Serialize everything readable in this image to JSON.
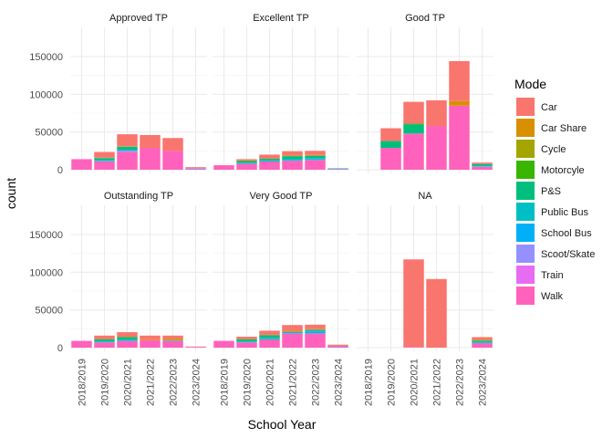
{
  "chart_data": {
    "type": "bar",
    "stacked": true,
    "facet_layout": "2x3 grid",
    "xlabel": "School Year",
    "ylabel": "count",
    "ylim": [
      0,
      150000
    ],
    "y_ticks": [
      0,
      50000,
      100000,
      150000
    ],
    "y_tick_labels": [
      "0",
      "50000",
      "100000",
      "150000"
    ],
    "categories": [
      "2018/2019",
      "2019/2020",
      "2020/2021",
      "2021/2022",
      "2022/2023",
      "2023/2024"
    ],
    "grid": true,
    "legend": {
      "title": "Mode",
      "position": "right",
      "entries": [
        {
          "name": "Car",
          "color": "#F8766D"
        },
        {
          "name": "Car Share",
          "color": "#D89000"
        },
        {
          "name": "Cycle",
          "color": "#A3A500"
        },
        {
          "name": "Motorcyle",
          "color": "#39B600"
        },
        {
          "name": "P&S",
          "color": "#00BF7D"
        },
        {
          "name": "Public Bus",
          "color": "#00BFC4"
        },
        {
          "name": "School Bus",
          "color": "#00B0F6"
        },
        {
          "name": "Scoot/Skate",
          "color": "#9590FF"
        },
        {
          "name": "Train",
          "color": "#E76BF3"
        },
        {
          "name": "Walk",
          "color": "#FF62BC"
        }
      ]
    },
    "panels": [
      {
        "title": "Approved TP",
        "bars": [
          {
            "Walk": 14000
          },
          {
            "Walk": 11000,
            "Scoot/Skate": 500,
            "School Bus": 500,
            "Public Bus": 500,
            "P&S": 3000,
            "Car Share": 500,
            "Car": 7500
          },
          {
            "Walk": 24000,
            "Scoot/Skate": 1000,
            "School Bus": 1000,
            "Public Bus": 500,
            "P&S": 4000,
            "Car Share": 500,
            "Car": 16000
          },
          {
            "Walk": 29000,
            "Car": 17000
          },
          {
            "Walk": 25000,
            "Car": 17000
          },
          {
            "Walk": 1500,
            "Scoot/Skate": 500,
            "Public Bus": 500,
            "Car": 1000
          }
        ]
      },
      {
        "title": "Excellent TP",
        "bars": [
          {
            "Walk": 6000
          },
          {
            "Walk": 8000,
            "School Bus": 500,
            "Public Bus": 1000,
            "P&S": 2000,
            "Car Share": 1000,
            "Car": 1500
          },
          {
            "Walk": 11000,
            "School Bus": 500,
            "Public Bus": 1000,
            "P&S": 2000,
            "Car Share": 500,
            "Car": 5000
          },
          {
            "Walk": 12000,
            "School Bus": 1000,
            "Public Bus": 1500,
            "P&S": 3500,
            "Car Share": 1000,
            "Car": 5500
          },
          {
            "Walk": 13000,
            "School Bus": 1000,
            "Public Bus": 1500,
            "P&S": 3000,
            "Car Share": 1000,
            "Car": 5500
          },
          {
            "Walk": 1000,
            "School Bus": 500,
            "Public Bus": 500
          }
        ]
      },
      {
        "title": "Good TP",
        "bars": [
          {},
          {
            "Walk": 29000,
            "P&S": 9000,
            "Car": 17000
          },
          {
            "Walk": 48000,
            "P&S": 12000,
            "Motorcyle": 1000,
            "Car": 29000
          },
          {
            "Walk": 58000,
            "Car": 34000
          },
          {
            "Walk": 85000,
            "Car Share": 6000,
            "Car": 53000
          },
          {
            "Walk": 4000,
            "School Bus": 500,
            "Public Bus": 1000,
            "P&S": 2000,
            "Car": 2000
          }
        ]
      },
      {
        "title": "Outstanding TP",
        "bars": [
          {
            "Walk": 9000
          },
          {
            "Walk": 7000,
            "School Bus": 500,
            "Public Bus": 1000,
            "P&S": 2500,
            "Car Share": 500,
            "Car": 4500
          },
          {
            "Walk": 9000,
            "School Bus": 500,
            "Public Bus": 1500,
            "P&S": 3000,
            "Car Share": 500,
            "Car": 6000
          },
          {
            "Walk": 10000,
            "Car Share": 1000,
            "Car": 5000
          },
          {
            "Walk": 9000,
            "Public Bus": 500,
            "P&S": 500,
            "Car Share": 2000,
            "Car": 4000
          },
          {
            "Walk": 1000,
            "Car": 500
          }
        ]
      },
      {
        "title": "Very Good TP",
        "bars": [
          {
            "Walk": 9000
          },
          {
            "Walk": 7000,
            "School Bus": 500,
            "Public Bus": 1000,
            "P&S": 2500,
            "Car Share": 500,
            "Car": 3000
          },
          {
            "Walk": 11000,
            "School Bus": 500,
            "Public Bus": 1500,
            "P&S": 3500,
            "Car Share": 500,
            "Car": 5500
          },
          {
            "Walk": 19000,
            "School Bus": 1000,
            "Public Bus": 1000,
            "Car Share": 1500,
            "Car": 7500
          },
          {
            "Walk": 19000,
            "School Bus": 2500,
            "Public Bus": 1000,
            "P&S": 1000,
            "Car Share": 1000,
            "Car": 6000
          },
          {
            "Walk": 2000,
            "Public Bus": 500,
            "Car": 1500
          }
        ]
      },
      {
        "title": "NA",
        "bars": [
          {},
          {},
          {
            "Walk": 1000,
            "Car": 116000
          },
          {
            "Car": 91000
          },
          {},
          {
            "Walk": 6000,
            "School Bus": 500,
            "Public Bus": 1000,
            "P&S": 2000,
            "Car Share": 1000,
            "Car": 3500
          }
        ]
      }
    ]
  }
}
